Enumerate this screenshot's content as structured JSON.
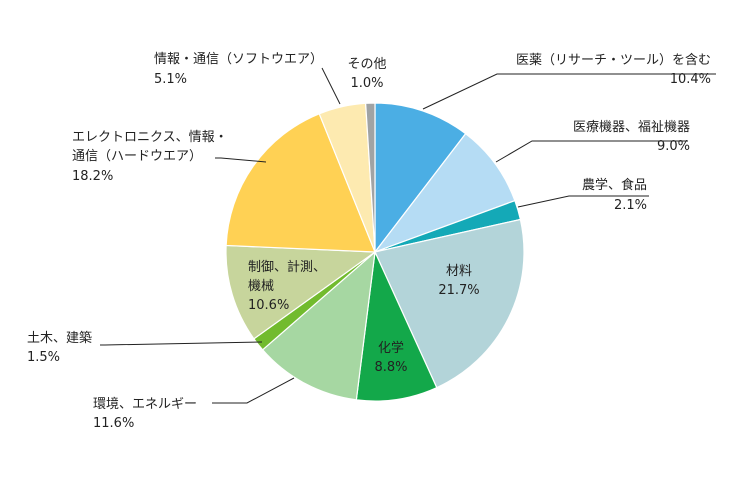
{
  "chart_data": {
    "type": "pie",
    "title": "",
    "start": "top, clockwise",
    "slices": [
      {
        "name": "医薬（リサーチ・ツール）を含む",
        "value": 10.4,
        "label": "10.4%",
        "color": "#4baee4"
      },
      {
        "name": "医療機器、福祉機器",
        "value": 9.0,
        "label": "9.0%",
        "color": "#b5dcf4"
      },
      {
        "name": "農学、食品",
        "value": 2.1,
        "label": "2.1%",
        "color": "#14a9b7"
      },
      {
        "name": "材料",
        "value": 21.7,
        "label": "21.7%",
        "color": "#b3d4d9"
      },
      {
        "name": "化学",
        "value": 8.8,
        "label": "8.8%",
        "color": "#13a84a"
      },
      {
        "name": "環境、エネルギー",
        "value": 11.6,
        "label": "11.6%",
        "color": "#a6d7a2"
      },
      {
        "name": "土木、建築",
        "value": 1.5,
        "label": "1.5%",
        "color": "#72bb2e"
      },
      {
        "name": "制御、計測、機械",
        "value": 10.6,
        "label": "10.6%",
        "color": "#c7d59c"
      },
      {
        "name": "エレクトロニクス、情報・通信（ハードウエア）",
        "value": 18.2,
        "label": "18.2%",
        "color": "#ffd154"
      },
      {
        "name": "情報・通信（ソフトウエア）",
        "value": 5.1,
        "label": "5.1%",
        "color": "#fdeab0"
      },
      {
        "name": "その他",
        "value": 1.0,
        "label": "1.0%",
        "color": "#a0a3a4"
      }
    ]
  },
  "text": {
    "iyaku_l1": "医薬（リサーチ・ツール）を含む",
    "iyaku_pct": "10.4%",
    "iryo_l1": "医療機器、福祉機器",
    "iryo_pct": "9.0%",
    "nogaku_l1": "農学、食品",
    "nogaku_pct": "2.1%",
    "zairyo_l1": "材料",
    "zairyo_pct": "21.7%",
    "kagaku_l1": "化学",
    "kagaku_pct": "8.8%",
    "kankyo_l1": "環境、エネルギー",
    "kankyo_pct": "11.6%",
    "doboku_l1": "土木、建築",
    "doboku_pct": "1.5%",
    "seigyo_l1": "制御、計測、",
    "seigyo_l2": "機械",
    "seigyo_pct": "10.6%",
    "elec_l1": "エレクトロニクス、情報・",
    "elec_l2": "通信（ハードウエア）",
    "elec_pct": "18.2%",
    "soft_l1": "情報・通信（ソフトウエア）",
    "soft_pct": "5.1%",
    "sonota_l1": "その他",
    "sonota_pct": "1.0%"
  }
}
